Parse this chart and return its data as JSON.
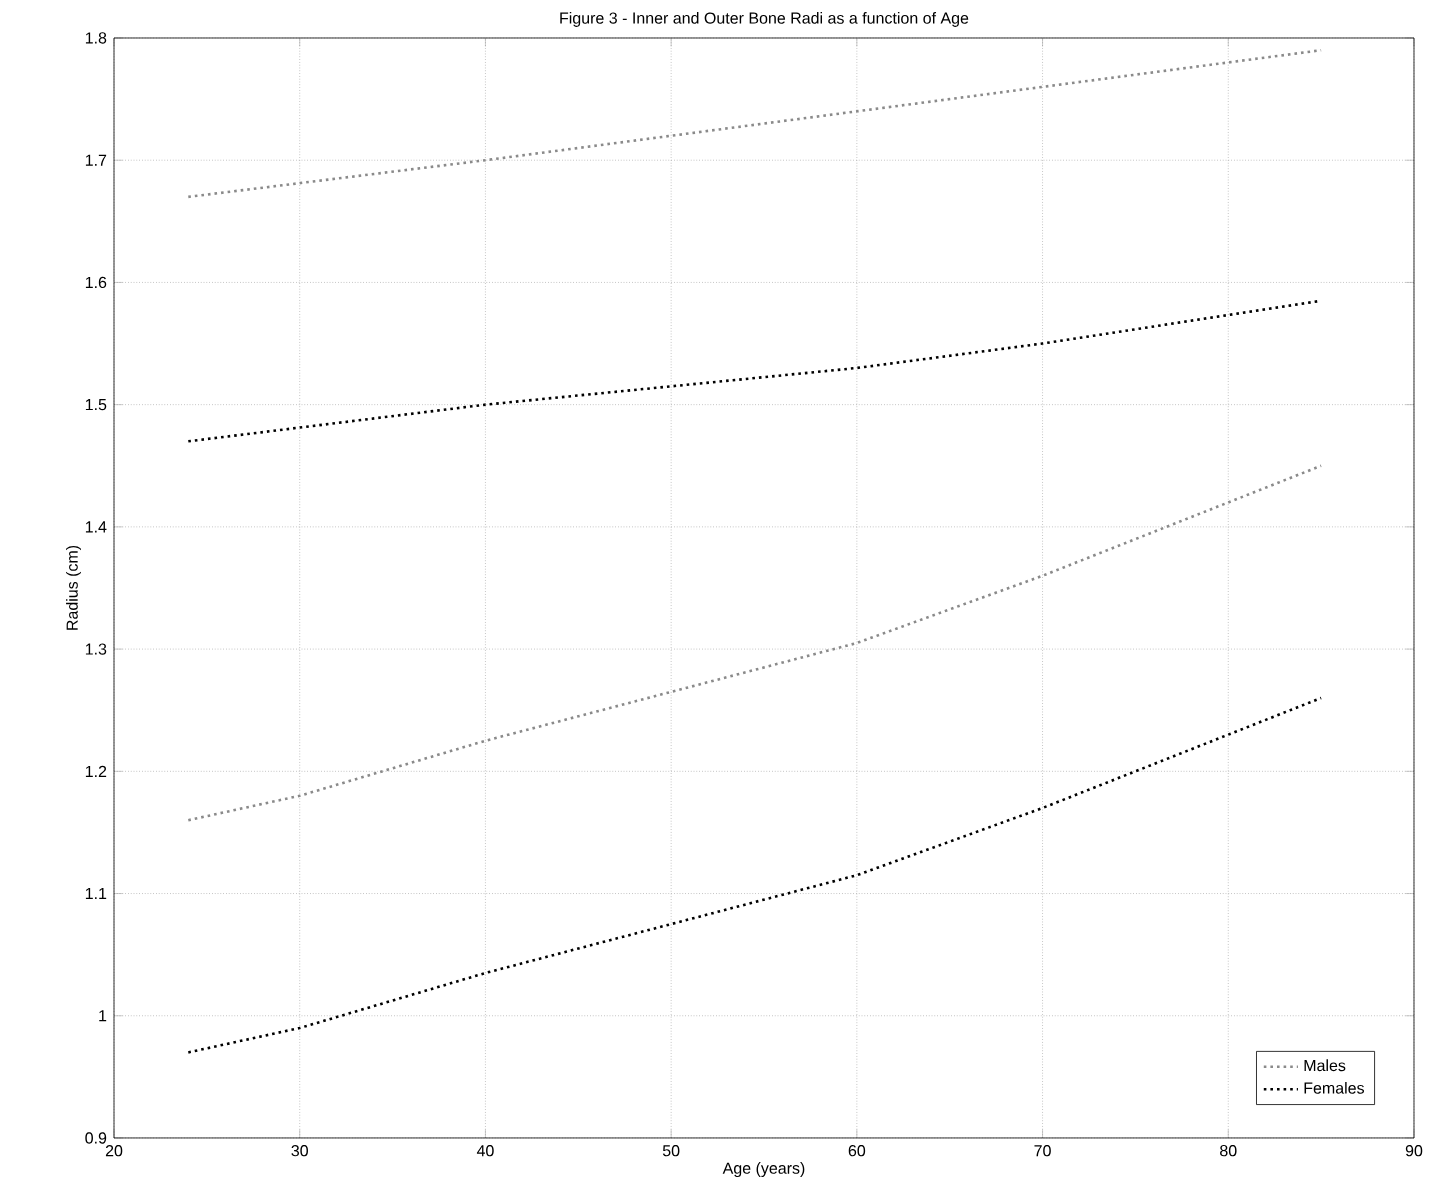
{
  "chart_data": {
    "type": "line",
    "title": "Figure 3 - Inner and Outer Bone Radi as a function of Age",
    "xlabel": "Age (years)",
    "ylabel": "Radius (cm)",
    "series": [
      {
        "name": "Males",
        "color": "#8a8a8a",
        "x": [
          24,
          40,
          60,
          85
        ],
        "values": [
          1.67,
          1.7,
          1.74,
          1.79
        ]
      },
      {
        "name": "Females",
        "color": "#000000",
        "x": [
          24,
          40,
          60,
          70,
          85
        ],
        "values": [
          1.47,
          1.5,
          1.53,
          1.55,
          1.585
        ]
      },
      {
        "color": "#8a8a8a",
        "x": [
          24,
          30,
          40,
          50,
          60,
          70,
          80,
          85
        ],
        "values": [
          1.16,
          1.18,
          1.225,
          1.265,
          1.305,
          1.36,
          1.42,
          1.45
        ]
      },
      {
        "color": "#000000",
        "x": [
          24,
          30,
          40,
          50,
          60,
          70,
          80,
          85
        ],
        "values": [
          0.97,
          0.99,
          1.035,
          1.075,
          1.115,
          1.17,
          1.23,
          1.26
        ]
      }
    ],
    "xlim": [
      20,
      90
    ],
    "xticks": [
      20,
      30,
      40,
      50,
      60,
      70,
      80,
      90
    ],
    "ylim": [
      0.9,
      1.8
    ],
    "yticks": [
      0.9,
      1,
      1.1,
      1.2,
      1.3,
      1.4,
      1.5,
      1.6,
      1.7,
      1.8
    ],
    "grid": true,
    "legend": "bottom right",
    "marker": "none",
    "line_style": "dotted"
  }
}
